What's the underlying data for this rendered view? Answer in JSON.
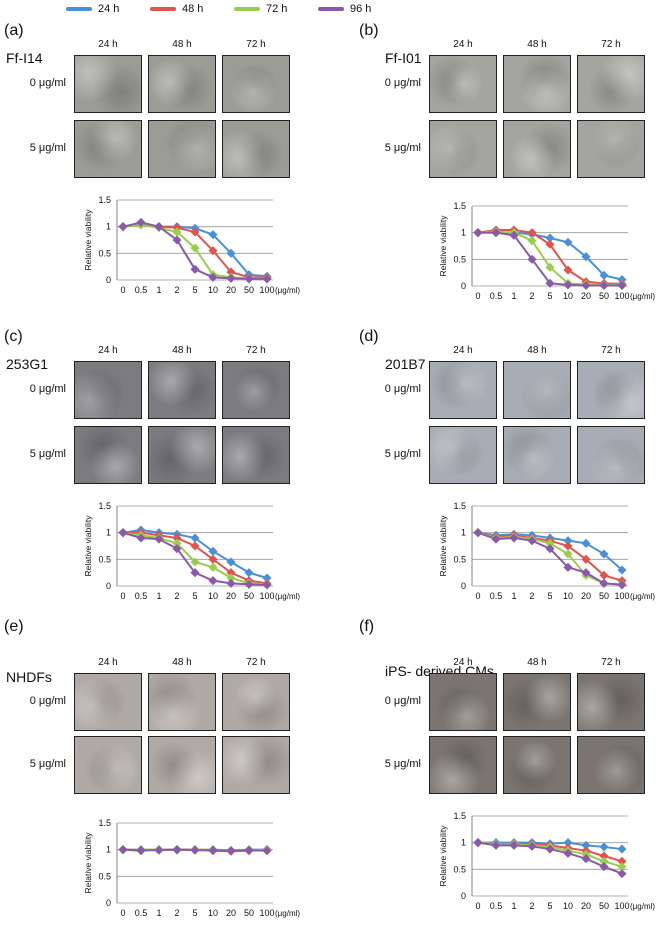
{
  "legend": [
    {
      "label": "24 h",
      "color": "#4a90d9"
    },
    {
      "label": "48 h",
      "color": "#e0544e"
    },
    {
      "label": "72 h",
      "color": "#9acd4f"
    },
    {
      "label": "96 h",
      "color": "#8a5aa8"
    }
  ],
  "photo_row_labels": [
    "0 μg/ml",
    "5 μg/ml"
  ],
  "time_labels": [
    "24 h",
    "48 h",
    "72 h"
  ],
  "panels": [
    {
      "letter": "(a)",
      "cell_line": "Ff-I14",
      "photo_tone": "#9c9c97"
    },
    {
      "letter": "(b)",
      "cell_line": "Ff-I01",
      "photo_tone": "#a4a4a0"
    },
    {
      "letter": "(c)",
      "cell_line": "253G1",
      "photo_tone": "#7c7c80"
    },
    {
      "letter": "(d)",
      "cell_line": "201B7",
      "photo_tone": "#a8acb4"
    },
    {
      "letter": "(e)",
      "cell_line": "NHDFs",
      "photo_tone": "#b0aaa6"
    },
    {
      "letter": "(f)",
      "cell_line": "iPS- derived CMs",
      "photo_tone": "#7a7570"
    }
  ],
  "chart_data": [
    {
      "panel": "(a)",
      "type": "line",
      "ylabel": "Relative viability",
      "xunit": "(μg/ml)",
      "categories": [
        "0",
        "0.5",
        "1",
        "2",
        "5",
        "10",
        "20",
        "50",
        "100"
      ],
      "ylim": [
        0,
        1.5
      ],
      "yticks": [
        "0",
        "0.5",
        "1",
        "1.5"
      ],
      "series": [
        {
          "name": "24 h",
          "values": [
            1,
            1.05,
            1.0,
            1.0,
            0.97,
            0.85,
            0.5,
            0.1,
            0.07
          ]
        },
        {
          "name": "48 h",
          "values": [
            1,
            1.05,
            1.0,
            0.98,
            0.9,
            0.55,
            0.15,
            0.05,
            0.05
          ]
        },
        {
          "name": "72 h",
          "values": [
            1,
            1.03,
            0.98,
            0.9,
            0.6,
            0.1,
            0.05,
            0.03,
            0.03
          ]
        },
        {
          "name": "96 h",
          "values": [
            1,
            1.08,
            1.0,
            0.75,
            0.2,
            0.05,
            0.03,
            0.02,
            0.02
          ]
        }
      ]
    },
    {
      "panel": "(b)",
      "type": "line",
      "ylabel": "Relative viability",
      "xunit": "(μg/ml)",
      "categories": [
        "0",
        "0.5",
        "1",
        "2",
        "5",
        "10",
        "20",
        "50",
        "100"
      ],
      "ylim": [
        0,
        1.5
      ],
      "yticks": [
        "0",
        "0.5",
        "1",
        "1.5"
      ],
      "series": [
        {
          "name": "24 h",
          "values": [
            1,
            1.0,
            1.0,
            0.97,
            0.9,
            0.82,
            0.55,
            0.2,
            0.12
          ]
        },
        {
          "name": "48 h",
          "values": [
            1,
            1.05,
            1.05,
            1.0,
            0.78,
            0.3,
            0.08,
            0.05,
            0.04
          ]
        },
        {
          "name": "72 h",
          "values": [
            1,
            1.02,
            1.0,
            0.85,
            0.35,
            0.05,
            0.03,
            0.02,
            0.02
          ]
        },
        {
          "name": "96 h",
          "values": [
            1,
            1.0,
            0.95,
            0.5,
            0.05,
            0.02,
            0.01,
            0.01,
            0.01
          ]
        }
      ]
    },
    {
      "panel": "(c)",
      "type": "line",
      "ylabel": "Relative viability",
      "xunit": "(μg/ml)",
      "categories": [
        "0",
        "0.5",
        "1",
        "2",
        "5",
        "10",
        "20",
        "50",
        "100"
      ],
      "ylim": [
        0,
        1.5
      ],
      "yticks": [
        "0",
        "0.5",
        "1",
        "1.5"
      ],
      "series": [
        {
          "name": "24 h",
          "values": [
            1,
            1.05,
            1.0,
            0.97,
            0.9,
            0.65,
            0.45,
            0.25,
            0.15
          ]
        },
        {
          "name": "48 h",
          "values": [
            1,
            1.0,
            0.95,
            0.9,
            0.75,
            0.5,
            0.25,
            0.1,
            0.05
          ]
        },
        {
          "name": "72 h",
          "values": [
            1,
            0.95,
            0.9,
            0.8,
            0.45,
            0.35,
            0.15,
            0.05,
            0.03
          ]
        },
        {
          "name": "96 h",
          "values": [
            1,
            0.9,
            0.88,
            0.7,
            0.25,
            0.1,
            0.05,
            0.03,
            0.02
          ]
        }
      ]
    },
    {
      "panel": "(d)",
      "type": "line",
      "ylabel": "Relative viability",
      "xunit": "(μg/ml)",
      "categories": [
        "0",
        "0.5",
        "1",
        "2",
        "5",
        "10",
        "20",
        "50",
        "100"
      ],
      "ylim": [
        0,
        1.5
      ],
      "yticks": [
        "0",
        "0.5",
        "1",
        "1.5"
      ],
      "series": [
        {
          "name": "24 h",
          "values": [
            1,
            0.95,
            0.97,
            0.95,
            0.9,
            0.85,
            0.8,
            0.6,
            0.3
          ]
        },
        {
          "name": "48 h",
          "values": [
            1,
            0.92,
            0.95,
            0.9,
            0.85,
            0.75,
            0.5,
            0.2,
            0.1
          ]
        },
        {
          "name": "72 h",
          "values": [
            1,
            0.9,
            0.92,
            0.88,
            0.8,
            0.6,
            0.2,
            0.05,
            0.03
          ]
        },
        {
          "name": "96 h",
          "values": [
            1,
            0.88,
            0.9,
            0.85,
            0.7,
            0.35,
            0.25,
            0.05,
            0.02
          ]
        }
      ]
    },
    {
      "panel": "(e)",
      "type": "line",
      "ylabel": "Relative viability",
      "xunit": "(μg/ml)",
      "categories": [
        "0",
        "0.5",
        "1",
        "2",
        "5",
        "10",
        "20",
        "50",
        "100"
      ],
      "ylim": [
        0,
        1.5
      ],
      "yticks": [
        "0",
        "0.5",
        "1",
        "1.5"
      ],
      "series": [
        {
          "name": "24 h",
          "values": [
            1,
            1.0,
            1.0,
            1.0,
            1.0,
            1.0,
            0.98,
            1.0,
            1.0
          ]
        },
        {
          "name": "48 h",
          "values": [
            1,
            0.98,
            1.0,
            1.0,
            1.0,
            0.98,
            0.97,
            0.98,
            1.0
          ]
        },
        {
          "name": "72 h",
          "values": [
            1,
            1.0,
            1.0,
            0.99,
            1.0,
            1.0,
            0.99,
            1.0,
            0.99
          ]
        },
        {
          "name": "96 h",
          "values": [
            1,
            0.99,
            0.99,
            1.0,
            0.99,
            0.99,
            0.98,
            0.99,
            0.98
          ]
        }
      ]
    },
    {
      "panel": "(f)",
      "type": "line",
      "ylabel": "Relative viability",
      "xunit": "(μg/ml)",
      "categories": [
        "0",
        "0.5",
        "1",
        "2",
        "5",
        "10",
        "20",
        "50",
        "100"
      ],
      "ylim": [
        0,
        1.5
      ],
      "yticks": [
        "0",
        "0.5",
        "1",
        "1.5"
      ],
      "series": [
        {
          "name": "24 h",
          "values": [
            1,
            1.0,
            1.0,
            1.0,
            0.98,
            1.0,
            0.95,
            0.92,
            0.88
          ]
        },
        {
          "name": "48 h",
          "values": [
            1,
            0.97,
            0.98,
            0.97,
            0.95,
            0.9,
            0.85,
            0.75,
            0.65
          ]
        },
        {
          "name": "72 h",
          "values": [
            1,
            0.97,
            0.97,
            0.95,
            0.92,
            0.85,
            0.78,
            0.65,
            0.55
          ]
        },
        {
          "name": "96 h",
          "values": [
            1,
            0.95,
            0.95,
            0.93,
            0.88,
            0.8,
            0.7,
            0.55,
            0.42
          ]
        }
      ]
    }
  ]
}
